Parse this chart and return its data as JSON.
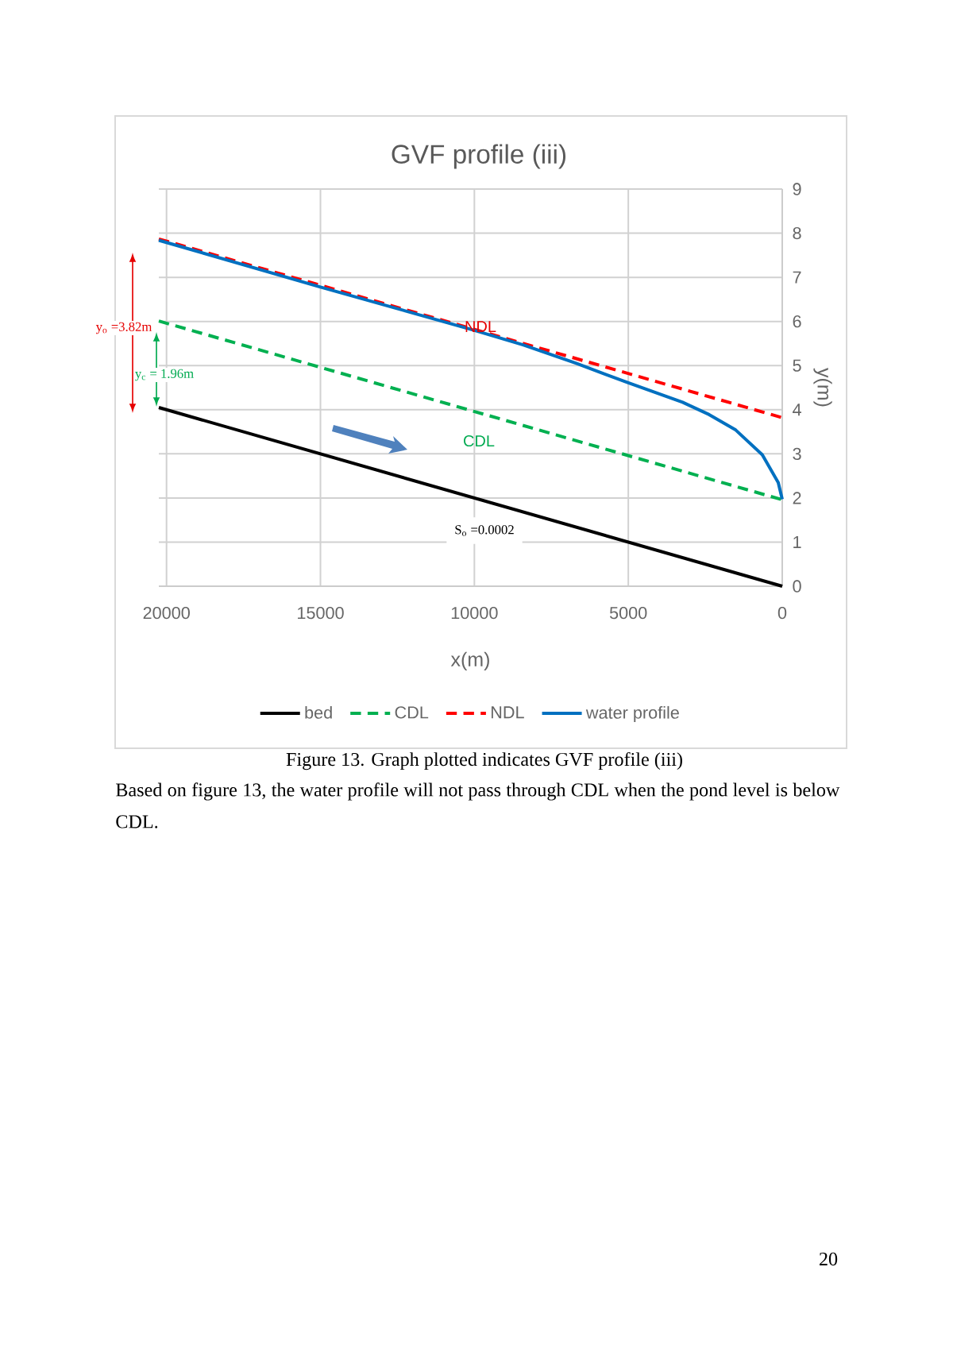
{
  "chart_data": {
    "type": "line",
    "title": "GVF profile (iii)",
    "xlabel": "x(m)",
    "ylabel": "y(m)",
    "xlim": [
      20250,
      0
    ],
    "xticks": [
      20000,
      15000,
      10000,
      5000,
      0
    ],
    "ylim": [
      0,
      9
    ],
    "yticks": [
      0,
      1,
      2,
      3,
      4,
      5,
      6,
      7,
      8,
      9
    ],
    "grid": true,
    "legend": "bottom",
    "marker": "none",
    "series": [
      {
        "name": "bed",
        "color": "#000000",
        "line_style": "solid",
        "x": [
          20250,
          0
        ],
        "values": [
          4.05,
          0
        ]
      },
      {
        "name": "CDL",
        "color": "#00b050",
        "line_style": "dashed",
        "x": [
          20250,
          0
        ],
        "values": [
          6.01,
          1.96
        ]
      },
      {
        "name": "NDL",
        "color": "#ff0000",
        "line_style": "dashed",
        "x": [
          20250,
          0
        ],
        "values": [
          7.87,
          3.82
        ]
      },
      {
        "name": "water profile",
        "color": "#0070c0",
        "line_style": "solid",
        "x": [
          20250,
          15000,
          10000,
          8420,
          6690,
          5000,
          3238,
          2375,
          1511,
          648,
          130,
          0
        ],
        "values": [
          7.84,
          6.78,
          5.8,
          5.47,
          5.05,
          4.61,
          4.17,
          3.89,
          3.54,
          2.98,
          2.35,
          1.97
        ]
      }
    ],
    "annotations": [
      "y$_{o}$ =3.82m",
      "y$_{c}$ = 1.96m",
      "S$_{o}$ =0.0002",
      "NDL",
      "CDL",
      "Figure 13. Graph plotted indicates GVF profile (iii)",
      "Based on figure 13, the water profile will not pass through CDL when the pond level is below CDL.",
      "20"
    ]
  }
}
